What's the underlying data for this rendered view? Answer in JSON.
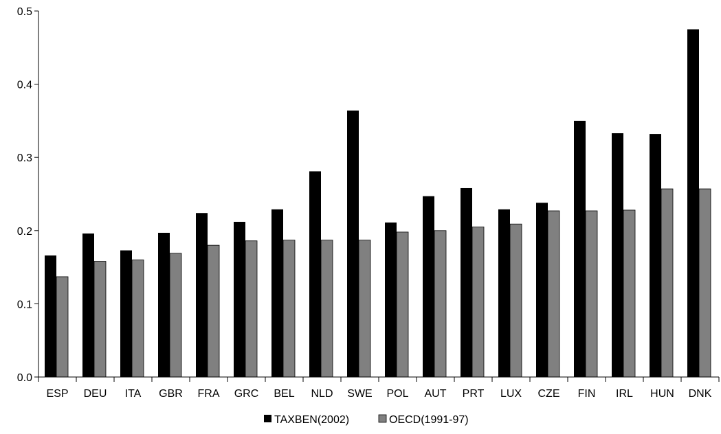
{
  "chart_data": {
    "type": "bar",
    "title": "",
    "xlabel": "",
    "ylabel": "",
    "ylim": [
      0,
      0.5
    ],
    "yticks": [
      "0.0",
      "0.1",
      "0.2",
      "0.3",
      "0.4",
      "0.5"
    ],
    "grid": false,
    "legend_position": "bottom",
    "categories": [
      "ESP",
      "DEU",
      "ITA",
      "GBR",
      "FRA",
      "GRC",
      "BEL",
      "NLD",
      "SWE",
      "POL",
      "AUT",
      "PRT",
      "LUX",
      "CZE",
      "FIN",
      "IRL",
      "HUN",
      "DNK"
    ],
    "series": [
      {
        "name": "TAXBEN(2002)",
        "color": "#000000",
        "values": [
          0.166,
          0.196,
          0.173,
          0.197,
          0.224,
          0.212,
          0.229,
          0.281,
          0.364,
          0.211,
          0.247,
          0.258,
          0.229,
          0.238,
          0.35,
          0.333,
          0.332,
          0.475
        ]
      },
      {
        "name": "OECD(1991-97)",
        "color": "#808080",
        "values": [
          0.137,
          0.158,
          0.16,
          0.169,
          0.18,
          0.186,
          0.187,
          0.187,
          0.187,
          0.198,
          0.2,
          0.205,
          0.209,
          0.227,
          0.227,
          0.228,
          0.257,
          0.257
        ]
      }
    ]
  }
}
